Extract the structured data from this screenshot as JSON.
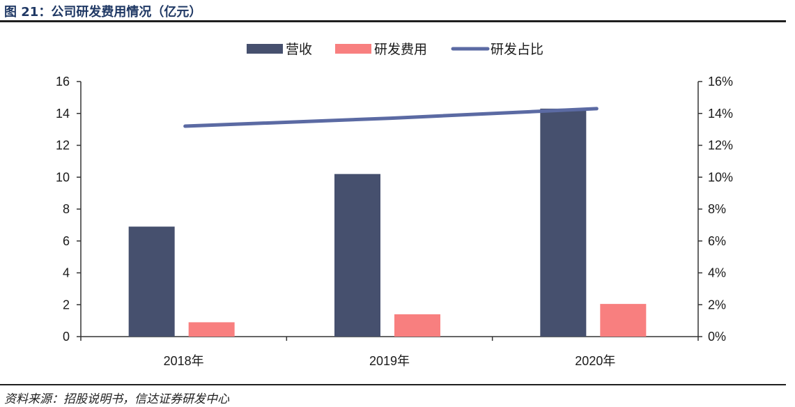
{
  "header": {
    "title": "图 21：公司研发费用情况（亿元）"
  },
  "footer": {
    "source": "资料来源：招股说明书，信达证券研发中心"
  },
  "colors": {
    "revenue": "#46506e",
    "rd_expense": "#f87f7f",
    "rd_ratio": "#5b6aa3",
    "title": "#1f3864"
  },
  "chart_data": {
    "type": "bar",
    "categories": [
      "2018年",
      "2019年",
      "2020年"
    ],
    "series": [
      {
        "name": "营收",
        "kind": "bar",
        "axis": "left",
        "color": "#46506e",
        "values": [
          6.9,
          10.2,
          14.3
        ]
      },
      {
        "name": "研发费用",
        "kind": "bar",
        "axis": "left",
        "color": "#f87f7f",
        "values": [
          0.9,
          1.4,
          2.05
        ]
      },
      {
        "name": "研发占比",
        "kind": "line",
        "axis": "right",
        "color": "#5b6aa3",
        "values": [
          0.132,
          0.137,
          0.143
        ]
      }
    ],
    "y_left": {
      "lim": [
        0,
        16
      ],
      "ticks": [
        "0",
        "2",
        "4",
        "6",
        "8",
        "10",
        "12",
        "14",
        "16"
      ]
    },
    "y_right": {
      "lim": [
        0,
        0.16
      ],
      "ticks": [
        "0%",
        "2%",
        "4%",
        "6%",
        "8%",
        "10%",
        "12%",
        "14%",
        "16%"
      ]
    },
    "legend_position": "top-center",
    "grid": false
  }
}
